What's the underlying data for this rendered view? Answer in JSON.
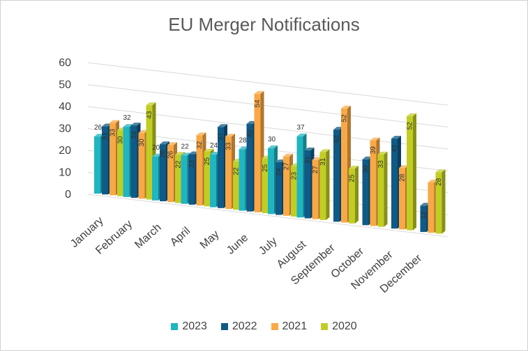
{
  "chart_data": {
    "type": "bar",
    "variant": "3d-clustered-column",
    "title": "EU Merger Notifications",
    "xlabel": "",
    "ylabel": "",
    "ylim": [
      0,
      60
    ],
    "yticks": [
      "0",
      "10",
      "20",
      "30",
      "40",
      "50",
      "60"
    ],
    "grid": true,
    "legend_position": "bottom",
    "categories": [
      "January",
      "February",
      "March",
      "April",
      "May",
      "June",
      "July",
      "August",
      "September",
      "October",
      "November",
      "December"
    ],
    "series": [
      {
        "name": "2023",
        "color": "#1fb5c1",
        "values": [
          26,
          32,
          20,
          22,
          24,
          28,
          30,
          37,
          null,
          null,
          null,
          null
        ],
        "labels": [
          "26",
          "32",
          "20",
          "22",
          "24",
          "28",
          "30",
          "37",
          "",
          "",
          "",
          ""
        ]
      },
      {
        "name": "2022",
        "color": "#0f5a86",
        "values": [
          31,
          33,
          26,
          23,
          37,
          40,
          24,
          31,
          42,
          30,
          41,
          12
        ],
        "labels": [
          "31",
          "33",
          "26",
          "23",
          "37",
          "40",
          "24",
          "31",
          "42",
          "30",
          "41",
          "12"
        ]
      },
      {
        "name": "2021",
        "color": "#f9a846",
        "values": [
          33,
          30,
          26,
          32,
          33,
          54,
          27,
          27,
          52,
          39,
          28,
          23
        ],
        "labels": [
          "33",
          "30",
          "26",
          "32",
          "33",
          "54",
          "27",
          "27",
          "52",
          "39",
          "28",
          ""
        ]
      },
      {
        "name": "2020",
        "color": "#c1cd23",
        "values": [
          30,
          43,
          22,
          25,
          22,
          25,
          23,
          31,
          25,
          33,
          52,
          28
        ],
        "labels": [
          "30",
          "43",
          "22",
          "25",
          "22",
          "25",
          "23",
          "31",
          "25",
          "33",
          "52",
          "28"
        ]
      }
    ]
  }
}
